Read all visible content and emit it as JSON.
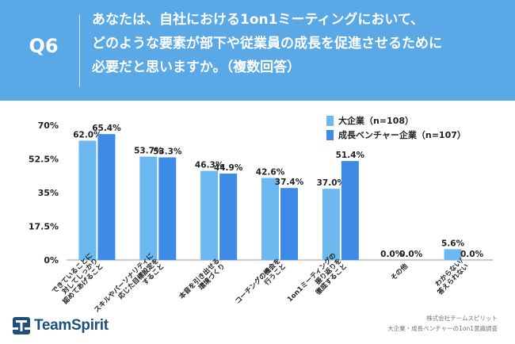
{
  "header": {
    "question_no": "Q6",
    "question_lines": [
      "あなたは、自社における1on1ミーティングにおいて、",
      "どのような要素が部下や従業員の成長を促進させるために",
      "必要だと思いますか。（複数回答）"
    ]
  },
  "colors": {
    "header_bg": "#5aa9e6",
    "series_large": "#6bb9f0",
    "series_venture": "#3d8be6"
  },
  "chart_data": {
    "type": "bar",
    "categories": [
      "できていることに\n対してしっかり\n認めてあげること",
      "スキルやパーソナリティに\n応じた目標設定を\nすること",
      "本音を引き出せる\n環境づくり",
      "コーチングの機会を\n行うこと",
      "1on1ミーティングの\n振り返りを\n徹底すること",
      "その他",
      "わからない/\n答えられない"
    ],
    "series": [
      {
        "name": "大企業（n=108）",
        "values": [
          62.0,
          53.7,
          46.3,
          42.6,
          37.0,
          0.0,
          5.6
        ]
      },
      {
        "name": "成長ベンチャー企業（n=107）",
        "values": [
          65.4,
          53.3,
          44.9,
          37.4,
          51.4,
          0.0,
          0.0
        ]
      }
    ],
    "data_labels": [
      [
        "62.0%",
        "53.7%",
        "46.3%",
        "42.6%",
        "37.0%",
        "0.0%",
        "5.6%"
      ],
      [
        "65.4%",
        "53.3%",
        "44.9%",
        "37.4%",
        "51.4%",
        "0.0%",
        "0.0%"
      ]
    ],
    "y_ticks": [
      "0%",
      "17.5%",
      "35%",
      "52.5%",
      "70%"
    ],
    "y_tick_values": [
      0,
      17.5,
      35,
      52.5,
      70
    ],
    "ylim": [
      0,
      70
    ],
    "grid": false,
    "legend": "top-right"
  },
  "footer": {
    "logo_text": "TeamSpirit",
    "credit_lines": [
      "株式会社チームスピリット",
      "大企業・成長ベンチャーの1on1意識調査"
    ]
  }
}
